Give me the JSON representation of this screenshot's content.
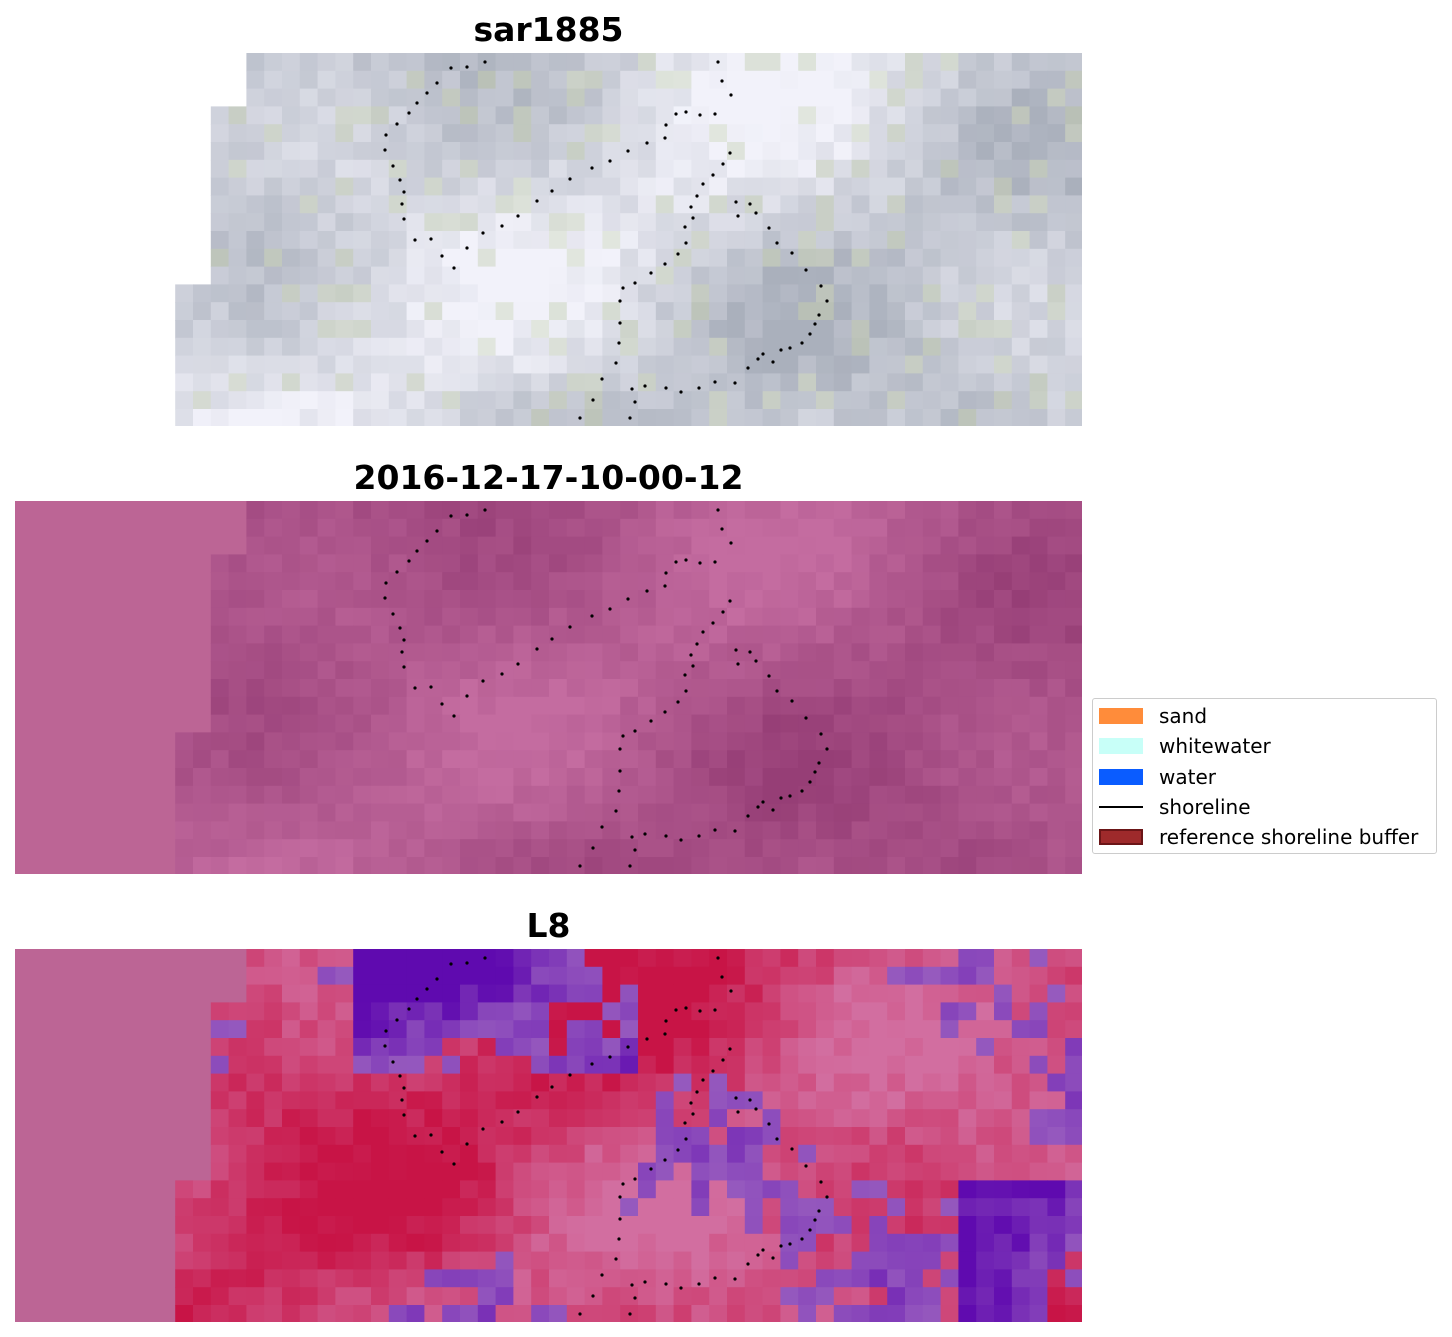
{
  "figure": {
    "panels": [
      {
        "title": "sar1885",
        "style": "gray"
      },
      {
        "title": "2016-12-17-10-00-12",
        "style": "magenta"
      },
      {
        "title": "L8",
        "style": "class"
      }
    ]
  },
  "legend": {
    "items": [
      {
        "label": "sand",
        "color": "#ff8c3a",
        "kind": "patch"
      },
      {
        "label": "whitewater",
        "color": "#c8fff8",
        "kind": "patch"
      },
      {
        "label": "water",
        "color": "#0a5cff",
        "kind": "patch"
      },
      {
        "label": "shoreline",
        "color": "#000000",
        "kind": "line"
      },
      {
        "label": "reference shoreline buffer",
        "color": "#9e2a2b",
        "kind": "patch"
      }
    ]
  },
  "colors": {
    "nodata_magenta": "#bc6595",
    "shoreline": "#000000"
  }
}
